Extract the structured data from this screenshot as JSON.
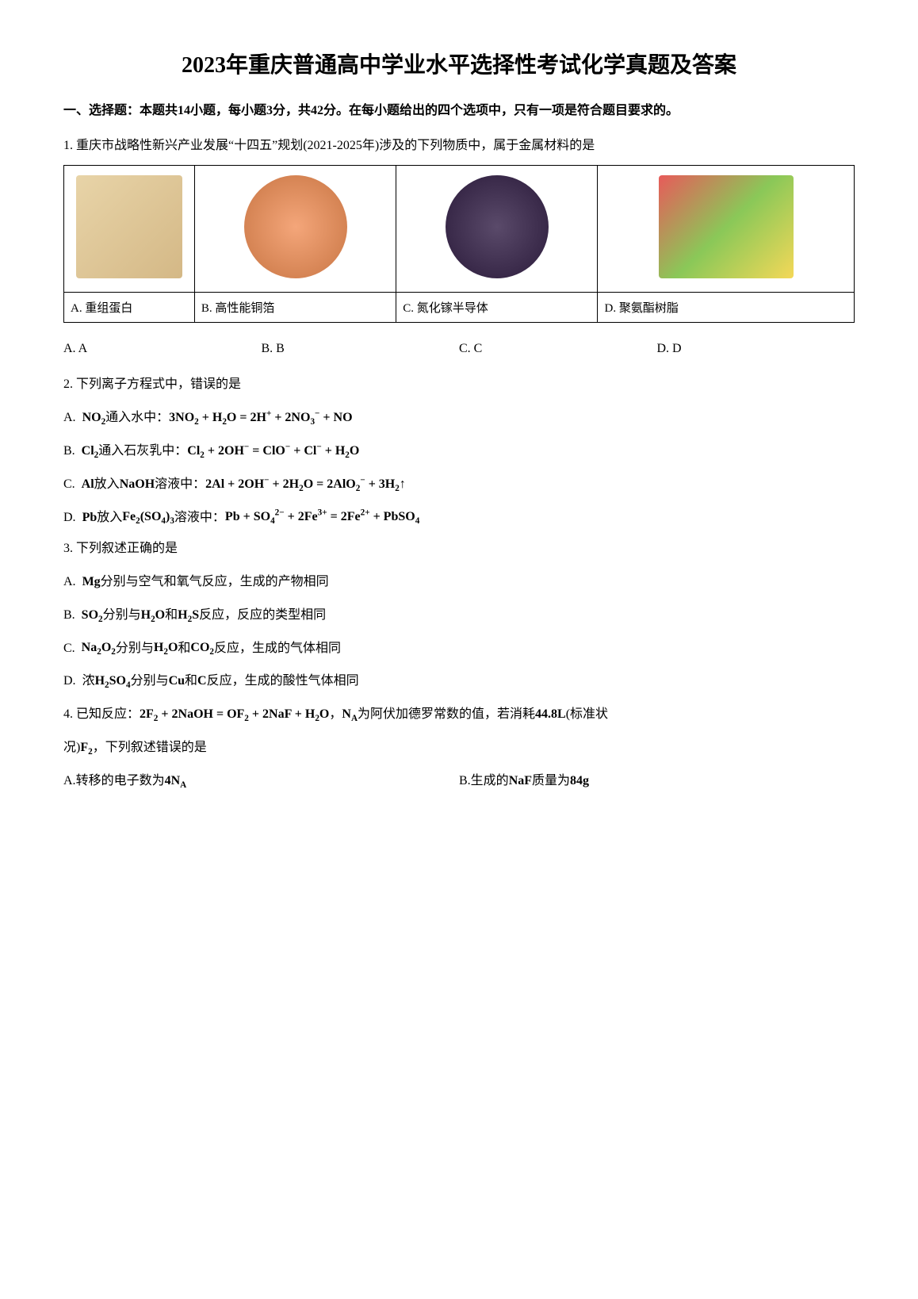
{
  "title": "2023年重庆普通高中学业水平选择性考试化学真题及答案",
  "section_header": "一、选择题：本题共14小题，每小题3分，共42分。在每小题给出的四个选项中，只有一项是符合题目要求的。",
  "q1": {
    "stem": "1. 重庆市战略性新兴产业发展“十四五”规划(2021-2025年)涉及的下列物质中，属于金属材料的是",
    "cells": [
      "A. 重组蛋白",
      "B. 高性能铜箔",
      "C. 氮化镓半导体",
      "D. 聚氨酯树脂"
    ],
    "options": [
      "A. A",
      "B. B",
      "C. C",
      "D. D"
    ]
  },
  "q2": {
    "stem": "2. 下列离子方程式中，错误的是",
    "optA_label": "A.",
    "optA_prefix": "NO₂",
    "optA_text": "通入水中：",
    "optA_eq": "3NO₂ + H₂O = 2H⁺ + 2NO₃⁻ + NO",
    "optB_label": "B.",
    "optB_prefix": "Cl₂",
    "optB_text": "通入石灰乳中：",
    "optB_eq": "Cl₂ + 2OH⁻ = ClO⁻ + Cl⁻ + H₂O",
    "optC_label": "C.",
    "optC_prefix": "Al",
    "optC_text1": "放入",
    "optC_mid": "NaOH",
    "optC_text2": "溶液中：",
    "optC_eq": "2Al + 2OH⁻ + 2H₂O = 2AlO₂⁻ + 3H₂↑",
    "optD_label": "D.",
    "optD_prefix": "Pb",
    "optD_text1": "放入",
    "optD_mid": "Fe₂(SO₄)₃",
    "optD_text2": "溶液中：",
    "optD_eq": "Pb + SO₄²⁻ + 2Fe³⁺ = 2Fe²⁺ + PbSO₄"
  },
  "q3": {
    "stem": "3. 下列叙述正确的是",
    "optA_label": "A.",
    "optA_f": "Mg",
    "optA_text": "分别与空气和氧气反应，生成的产物相同",
    "optB_label": "B.",
    "optB_f1": "SO₂",
    "optB_text1": "分别与",
    "optB_f2": "H₂O",
    "optB_text2": "和",
    "optB_f3": "H₂S",
    "optB_text3": "反应，反应的类型相同",
    "optC_label": "C.",
    "optC_f1": "Na₂O₂",
    "optC_text1": "分别与",
    "optC_f2": "H₂O",
    "optC_text2": "和",
    "optC_f3": "CO₂",
    "optC_text3": "反应，生成的气体相同",
    "optD_label": "D.",
    "optD_text1": "浓",
    "optD_f1": "H₂SO₄",
    "optD_text2": "分别与",
    "optD_f2": "Cu",
    "optD_text3": "和",
    "optD_f3": "C",
    "optD_text4": "反应，生成的酸性气体相同"
  },
  "q4": {
    "stem_prefix": "4. 已知反应：",
    "stem_eq": "2F₂ + 2NaOH = OF₂ + 2NaF + H₂O",
    "stem_comma": "，",
    "stem_na": "Nₐ",
    "stem_text1": "为阿伏加德罗常数的值，若消耗",
    "stem_vol": "44.8L",
    "stem_text2": "(标准状",
    "stem_line2_prefix": "况)",
    "stem_f2": "F₂",
    "stem_line2_suffix": "，下列叙述错误的是",
    "optA_label": "A.",
    "optA_text": "转移的电子数为",
    "optA_f": "4Nₐ",
    "optB_label": "B.",
    "optB_text1": "生成的",
    "optB_f1": "NaF",
    "optB_text2": "质量为",
    "optB_f2": "84g"
  },
  "colors": {
    "text": "#000000",
    "border": "#000000",
    "background": "#ffffff"
  }
}
